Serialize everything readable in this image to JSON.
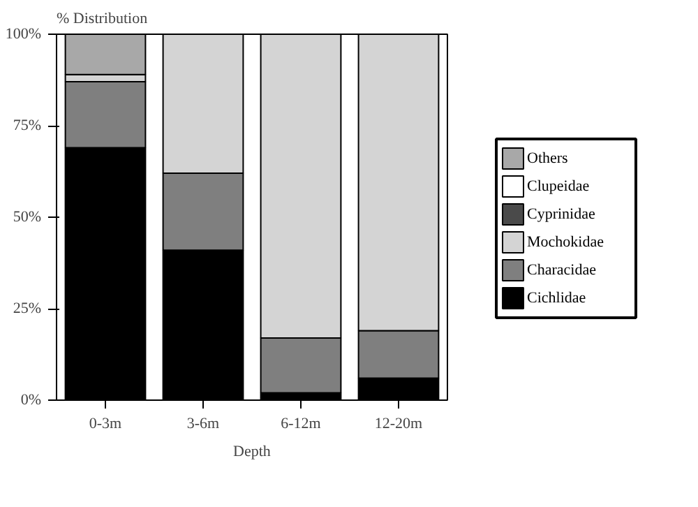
{
  "chart_data": {
    "type": "bar",
    "stacked": true,
    "ylabel": "% Distribution",
    "xlabel": "Depth",
    "categories": [
      "0-3m",
      "3-6m",
      "6-12m",
      "12-20m"
    ],
    "ylim": [
      0,
      100
    ],
    "yticks": [
      {
        "value": 0,
        "label": "0%"
      },
      {
        "value": 25,
        "label": "25%"
      },
      {
        "value": 50,
        "label": "50%"
      },
      {
        "value": 75,
        "label": "75%"
      },
      {
        "value": 100,
        "label": "100%"
      }
    ],
    "legend": "right",
    "grid": false,
    "series": [
      {
        "name": "Cichlidae",
        "color": "#000000",
        "values": [
          69,
          41,
          2,
          6
        ]
      },
      {
        "name": "Characidae",
        "color": "#7f7f7f",
        "values": [
          18,
          21,
          15,
          13
        ]
      },
      {
        "name": "Mochokidae",
        "color": "#d4d4d4",
        "values": [
          2,
          38,
          83,
          81
        ]
      },
      {
        "name": "Cyprinidae",
        "color": "#4a4a4a",
        "values": [
          0,
          0,
          0,
          0
        ]
      },
      {
        "name": "Clupeidae",
        "color": "#ffffff",
        "values": [
          0,
          0,
          0,
          0
        ]
      },
      {
        "name": "Others",
        "color": "#a8a8a8",
        "values": [
          11,
          0,
          0,
          0
        ]
      }
    ]
  }
}
